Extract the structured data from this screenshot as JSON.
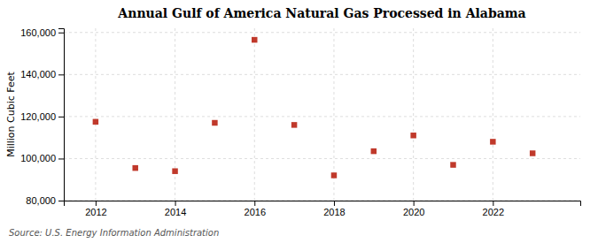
{
  "chart_data": {
    "type": "scatter",
    "title": "Annual Gulf of America Natural Gas Processed in Alabama",
    "ylabel": "Million Cubic Feet",
    "annotations": [
      "Source: U.S. Energy Information Administration"
    ],
    "x": [
      2012,
      2013,
      2014,
      2015,
      2016,
      2017,
      2018,
      2019,
      2020,
      2021,
      2022,
      2023
    ],
    "values": [
      117500,
      95500,
      94000,
      117000,
      156500,
      116000,
      92000,
      103500,
      111000,
      97000,
      108000,
      102500
    ],
    "xlim": [
      2011.2,
      2024.2
    ],
    "xticks": [
      2012,
      2014,
      2016,
      2018,
      2020,
      2022
    ],
    "ylim": [
      80000,
      162000
    ],
    "yticks": [
      {
        "value": 80000,
        "label": "80,000"
      },
      {
        "value": 100000,
        "label": "100,000"
      },
      {
        "value": 120000,
        "label": "120,000"
      },
      {
        "value": 140000,
        "label": "140,000"
      },
      {
        "value": 160000,
        "label": "160,000"
      }
    ],
    "color": "#c0392b",
    "marker": "square",
    "grid": true
  }
}
